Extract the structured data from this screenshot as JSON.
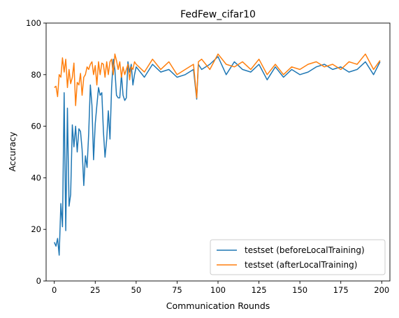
{
  "chart_data": {
    "type": "line",
    "title": "FedFew_cifar10",
    "xlabel": "Communication Rounds",
    "ylabel": "Accuracy",
    "xlim": [
      -5,
      205
    ],
    "ylim": [
      0,
      100
    ],
    "xticks": [
      0,
      25,
      50,
      75,
      100,
      125,
      150,
      175,
      200
    ],
    "yticks": [
      0,
      20,
      40,
      60,
      80,
      100
    ],
    "grid": false,
    "legend_position": "lower-right",
    "series": [
      {
        "name": "testset (beforeLocalTraining)",
        "color": "#1f77b4",
        "x": [
          0,
          1,
          2,
          3,
          4,
          5,
          6,
          7,
          8,
          9,
          10,
          11,
          12,
          13,
          14,
          15,
          16,
          17,
          18,
          19,
          20,
          21,
          22,
          23,
          24,
          25,
          26,
          27,
          28,
          29,
          30,
          31,
          32,
          33,
          34,
          35,
          36,
          37,
          38,
          39,
          40,
          41,
          42,
          43,
          44,
          45,
          46,
          47,
          48,
          49,
          50,
          55,
          60,
          65,
          70,
          75,
          80,
          85,
          87,
          88,
          90,
          95,
          100,
          105,
          110,
          115,
          120,
          125,
          130,
          135,
          140,
          145,
          150,
          155,
          160,
          165,
          170,
          175,
          180,
          185,
          190,
          195,
          199
        ],
        "y": [
          15,
          13.5,
          16.5,
          10,
          30,
          21,
          73,
          19.5,
          67,
          29,
          33.5,
          60.5,
          52,
          60,
          50,
          59,
          58,
          51,
          37,
          48.5,
          44,
          57,
          76,
          68,
          47,
          61,
          68,
          75,
          72,
          73,
          58,
          48,
          55,
          66,
          55,
          75,
          86,
          82,
          72,
          71,
          71,
          80,
          72,
          70,
          71,
          85,
          81,
          84,
          76,
          80,
          83,
          79,
          84,
          81,
          82,
          79,
          80,
          82,
          70.5,
          84,
          82,
          84,
          87,
          80,
          85,
          82,
          81,
          84,
          78,
          83,
          79,
          82,
          80,
          81,
          83,
          84,
          82,
          83,
          81,
          82,
          85,
          80,
          85
        ]
      },
      {
        "name": "testset (afterLocalTraining)",
        "color": "#ff7f0e",
        "x": [
          0,
          1,
          2,
          3,
          4,
          5,
          6,
          7,
          8,
          9,
          10,
          11,
          12,
          13,
          14,
          15,
          16,
          17,
          18,
          19,
          20,
          21,
          22,
          23,
          24,
          25,
          26,
          27,
          28,
          29,
          30,
          31,
          32,
          33,
          34,
          35,
          36,
          37,
          38,
          39,
          40,
          41,
          42,
          43,
          44,
          45,
          46,
          47,
          48,
          49,
          50,
          55,
          60,
          65,
          70,
          75,
          80,
          85,
          87,
          88,
          90,
          95,
          100,
          105,
          110,
          115,
          120,
          125,
          130,
          135,
          140,
          145,
          150,
          155,
          160,
          165,
          170,
          175,
          180,
          185,
          190,
          195,
          199
        ],
        "y": [
          75,
          75.5,
          71.5,
          80,
          79,
          86.5,
          81,
          86,
          75,
          82,
          76.5,
          79,
          84.5,
          68,
          77,
          76,
          80.5,
          72,
          79,
          80,
          83,
          82,
          84,
          85,
          80,
          83.5,
          76,
          85,
          80,
          84.5,
          84,
          79,
          85,
          80,
          85,
          86,
          80,
          88,
          85.5,
          82,
          85,
          79,
          83,
          80,
          82,
          84,
          78,
          83,
          82,
          85,
          84,
          81,
          86,
          82,
          85,
          80,
          82,
          84,
          71,
          85,
          86,
          82,
          88,
          84,
          83,
          85,
          82,
          86,
          80,
          84,
          80,
          83,
          82,
          84,
          85,
          83,
          84,
          82,
          85,
          84,
          88,
          82,
          85.5
        ]
      }
    ]
  }
}
